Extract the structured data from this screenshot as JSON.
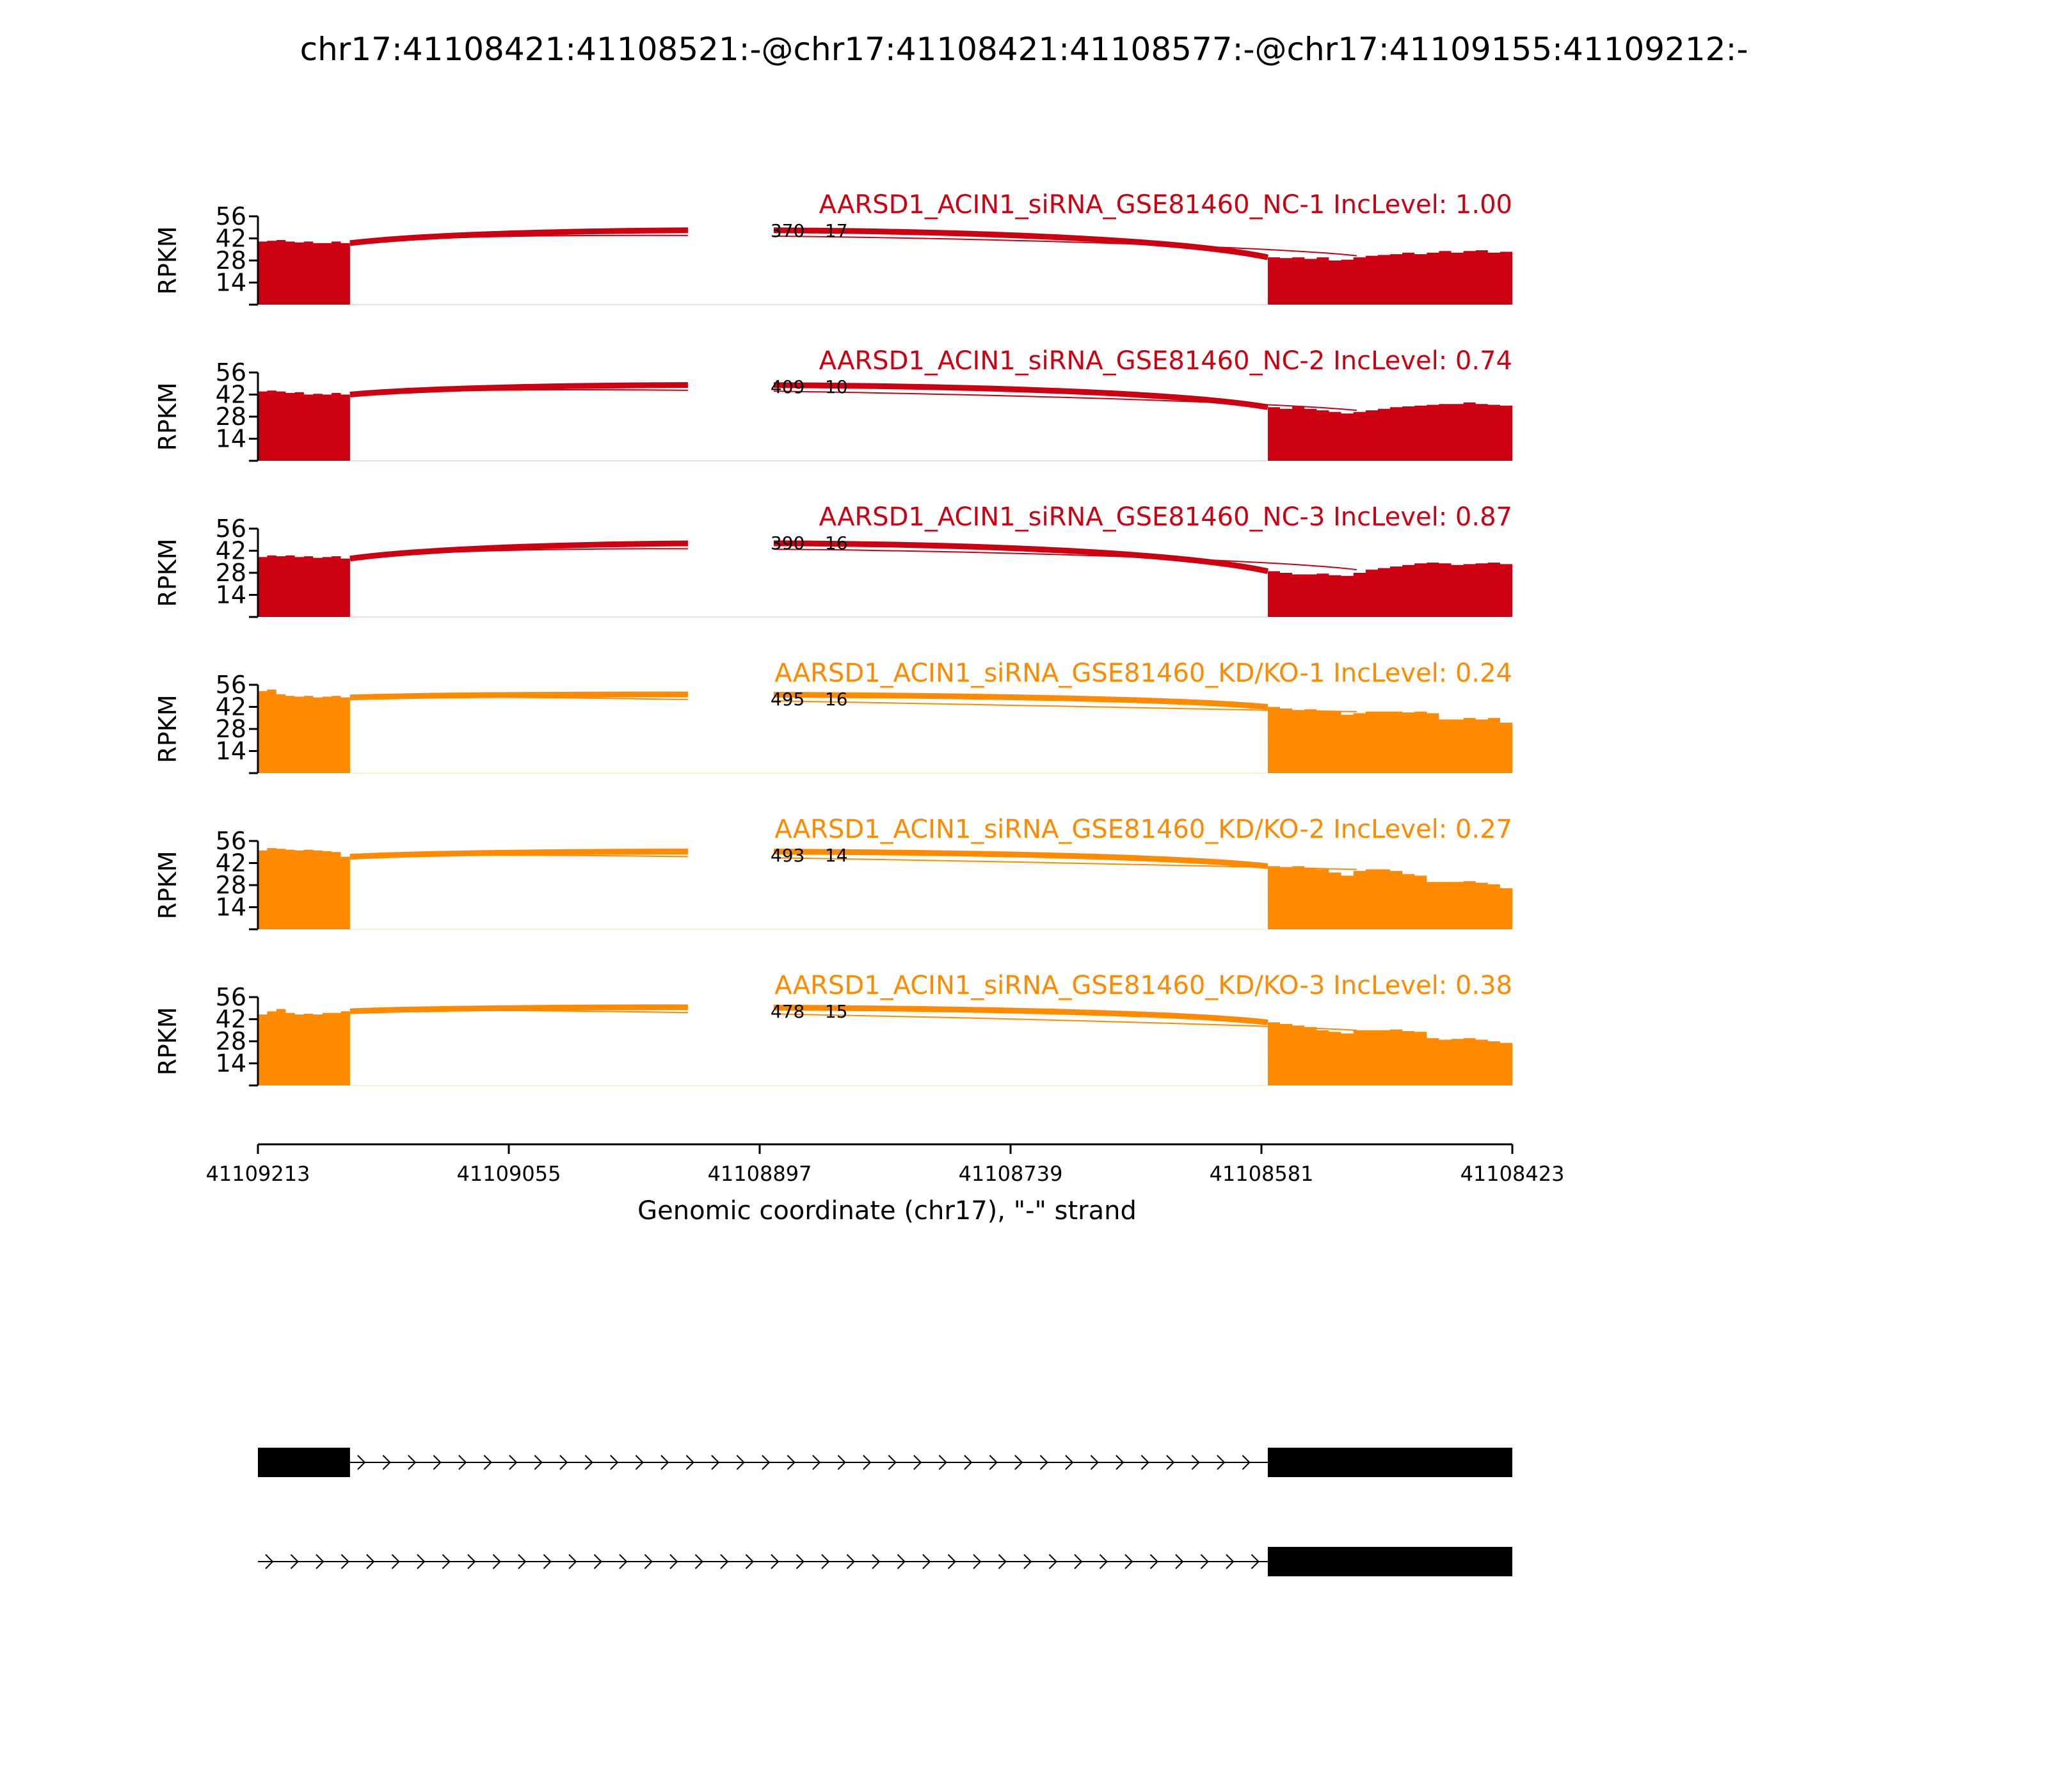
{
  "chart_data": {
    "type": "area",
    "title": "chr17:41108421:41108521:-@chr17:41108421:41108577:-@chr17:41109155:41109212:-",
    "xlabel": "Genomic coordinate (chr17), \"-\" strand",
    "ylabel": "RPKM",
    "xlim": [
      41109213,
      41108423
    ],
    "x_ticks": [
      "41109213",
      "41109055",
      "41108897",
      "41108739",
      "41108581",
      "41108423"
    ],
    "ylim": [
      0,
      56
    ],
    "y_ticks": [
      "56",
      "42",
      "28",
      "14"
    ],
    "exon_regions": [
      {
        "start": 41109213,
        "end": 41109155
      },
      {
        "start": 41108577,
        "end": 41108423
      }
    ],
    "series": [
      {
        "name": "AARSD1_ACIN1_siRNA_GSE81460_NC-1",
        "inc_level": "1.00",
        "group": "NC",
        "color": "#cc0011",
        "exon1_level": [
          40,
          40.5,
          41,
          40,
          39.5,
          40,
          39,
          39,
          40,
          39
        ],
        "exon2_level": [
          30,
          29.5,
          30,
          29,
          30,
          28,
          28.5,
          30,
          31,
          31.5,
          32,
          33,
          32,
          33,
          34,
          33,
          34,
          34.5,
          33,
          33.5
        ],
        "junction_counts": [
          "370",
          "17"
        ]
      },
      {
        "name": "AARSD1_ACIN1_siRNA_GSE81460_NC-2",
        "inc_level": "0.74",
        "group": "NC",
        "color": "#cc0011",
        "exon1_level": [
          44,
          44.5,
          44,
          43,
          43.5,
          42,
          42.5,
          42,
          43,
          42
        ],
        "exon2_level": [
          34,
          33,
          34.5,
          33,
          32,
          31,
          30,
          31,
          32,
          33,
          34,
          34.5,
          35,
          35.5,
          36,
          36,
          37,
          36,
          35.5,
          35
        ],
        "junction_counts": [
          "409",
          "10"
        ]
      },
      {
        "name": "AARSD1_ACIN1_siRNA_GSE81460_NC-3",
        "inc_level": "0.87",
        "group": "NC",
        "color": "#cc0011",
        "exon1_level": [
          38,
          39,
          38.5,
          39,
          38,
          38.5,
          37.5,
          38,
          38.5,
          37
        ],
        "exon2_level": [
          29,
          28,
          27,
          27,
          27.5,
          26.5,
          26,
          28,
          30,
          31,
          32,
          33,
          34,
          34.5,
          34,
          33,
          33.5,
          34,
          34.5,
          33.5
        ],
        "junction_counts": [
          "390",
          "16"
        ]
      },
      {
        "name": "AARSD1_ACIN1_siRNA_GSE81460_KD/KO-1",
        "inc_level": "0.24",
        "group": "KD/KO",
        "color": "#ff8a00",
        "exon1_level": [
          52,
          53,
          50,
          49,
          48.5,
          49,
          48,
          48.5,
          49,
          48
        ],
        "exon2_level": [
          42,
          41,
          40,
          40.5,
          39,
          39,
          37,
          38,
          39,
          39,
          39,
          38.5,
          39,
          38,
          34,
          34,
          35,
          34,
          35,
          32
        ],
        "junction_counts": [
          "495",
          "16"
        ]
      },
      {
        "name": "AARSD1_ACIN1_siRNA_GSE81460_KD/KO-2",
        "inc_level": "0.27",
        "group": "KD/KO",
        "color": "#ff8a00",
        "exon1_level": [
          50,
          51.5,
          51,
          50.5,
          50,
          50.5,
          50,
          49.5,
          49,
          46
        ],
        "exon2_level": [
          40,
          39.5,
          40,
          39,
          38,
          36,
          34,
          37,
          38,
          38,
          37,
          35,
          34,
          30,
          30,
          30,
          30.5,
          29.5,
          28.5,
          26
        ],
        "junction_counts": [
          "493",
          "14"
        ]
      },
      {
        "name": "AARSD1_ACIN1_siRNA_GSE81460_KD/KO-3",
        "inc_level": "0.38",
        "group": "KD/KO",
        "color": "#ff8a00",
        "exon1_level": [
          45,
          47,
          48.5,
          46,
          45,
          45.5,
          45,
          46,
          46,
          47
        ],
        "exon2_level": [
          40,
          39,
          38,
          37,
          35,
          34,
          33,
          35,
          35,
          35,
          35.5,
          34.5,
          34,
          30,
          29,
          29.5,
          30,
          29,
          28,
          27
        ],
        "junction_counts": [
          "478",
          "15"
        ]
      }
    ],
    "transcripts": [
      {
        "exons": [
          [
            41109213,
            41109155
          ],
          [
            41108577,
            41108423
          ]
        ]
      },
      {
        "exons": [
          [
            41108577,
            41108423
          ]
        ]
      }
    ]
  }
}
